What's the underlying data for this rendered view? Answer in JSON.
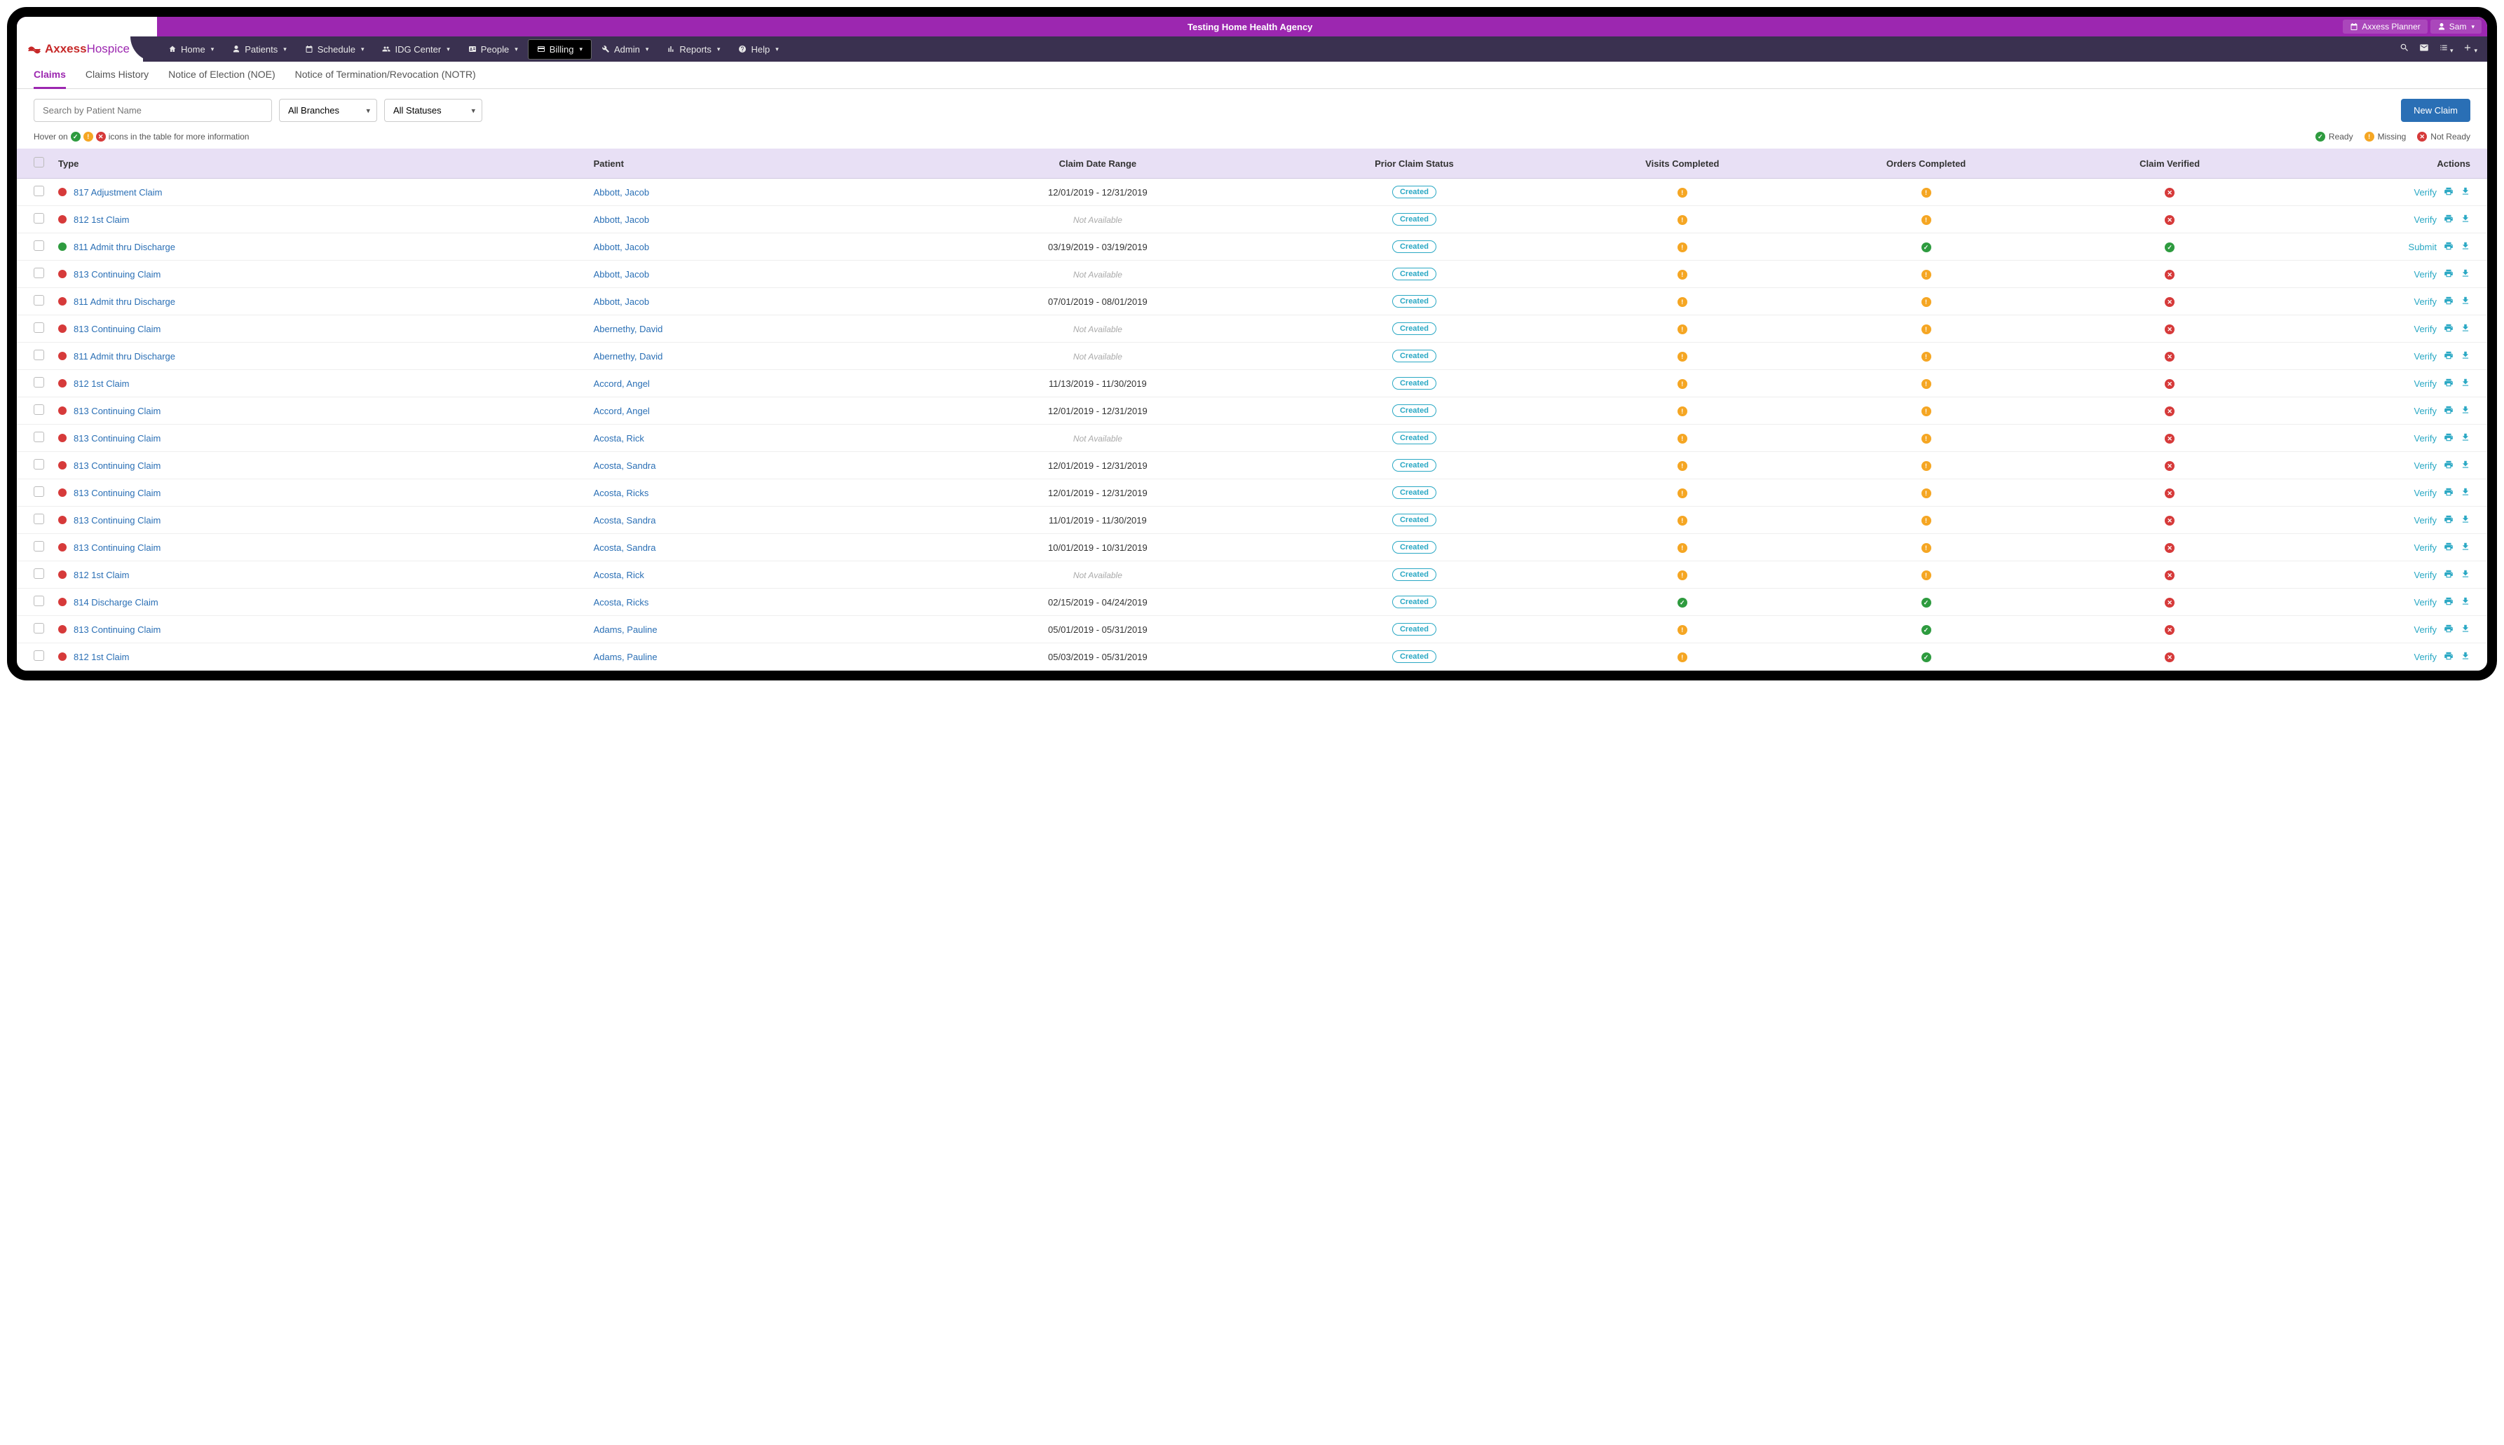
{
  "topbar": {
    "title": "Testing Home Health Agency",
    "planner": "Axxess Planner",
    "user": "Sam"
  },
  "logo": {
    "part1": "Axxess",
    "part2": "Hospice"
  },
  "nav": {
    "items": [
      {
        "label": "Home",
        "icon": "home"
      },
      {
        "label": "Patients",
        "icon": "user"
      },
      {
        "label": "Schedule",
        "icon": "calendar"
      },
      {
        "label": "IDG Center",
        "icon": "group"
      },
      {
        "label": "People",
        "icon": "id"
      },
      {
        "label": "Billing",
        "icon": "card",
        "active": true
      },
      {
        "label": "Admin",
        "icon": "wrench"
      },
      {
        "label": "Reports",
        "icon": "bars"
      },
      {
        "label": "Help",
        "icon": "help"
      }
    ]
  },
  "subtabs": [
    {
      "label": "Claims",
      "active": true
    },
    {
      "label": "Claims History"
    },
    {
      "label": "Notice of Election (NOE)"
    },
    {
      "label": "Notice of Termination/Revocation (NOTR)"
    }
  ],
  "filters": {
    "search_placeholder": "Search by Patient Name",
    "branch": "All Branches",
    "status": "All Statuses",
    "new_claim": "New Claim"
  },
  "legend": {
    "hover_text_pre": "Hover on",
    "hover_text_post": "icons in the table for more information",
    "ready": "Ready",
    "missing": "Missing",
    "notready": "Not Ready"
  },
  "columns": {
    "type": "Type",
    "patient": "Patient",
    "date": "Claim Date Range",
    "prior": "Prior Claim Status",
    "visits": "Visits Completed",
    "orders": "Orders Completed",
    "verified": "Claim Verified",
    "actions": "Actions"
  },
  "prior_label": "Created",
  "na_label": "Not Available",
  "action_verify": "Verify",
  "action_submit": "Submit",
  "rows": [
    {
      "dot": "red",
      "type": "817 Adjustment Claim",
      "patient": "Abbott, Jacob",
      "date": "12/01/2019 - 12/31/2019",
      "visits": "missing",
      "orders": "missing",
      "verified": "notready",
      "action": "Verify"
    },
    {
      "dot": "red",
      "type": "812 1st Claim",
      "patient": "Abbott, Jacob",
      "date": "na",
      "visits": "missing",
      "orders": "missing",
      "verified": "notready",
      "action": "Verify"
    },
    {
      "dot": "green",
      "type": "811 Admit thru Discharge",
      "patient": "Abbott, Jacob",
      "date": "03/19/2019 - 03/19/2019",
      "visits": "missing",
      "orders": "ready",
      "verified": "ready",
      "action": "Submit"
    },
    {
      "dot": "red",
      "type": "813 Continuing Claim",
      "patient": "Abbott, Jacob",
      "date": "na",
      "visits": "missing",
      "orders": "missing",
      "verified": "notready",
      "action": "Verify"
    },
    {
      "dot": "red",
      "type": "811 Admit thru Discharge",
      "patient": "Abbott, Jacob",
      "date": "07/01/2019 - 08/01/2019",
      "visits": "missing",
      "orders": "missing",
      "verified": "notready",
      "action": "Verify"
    },
    {
      "dot": "red",
      "type": "813 Continuing Claim",
      "patient": "Abernethy, David",
      "date": "na",
      "visits": "missing",
      "orders": "missing",
      "verified": "notready",
      "action": "Verify"
    },
    {
      "dot": "red",
      "type": "811 Admit thru Discharge",
      "patient": "Abernethy, David",
      "date": "na",
      "visits": "missing",
      "orders": "missing",
      "verified": "notready",
      "action": "Verify"
    },
    {
      "dot": "red",
      "type": "812 1st Claim",
      "patient": "Accord, Angel",
      "date": "11/13/2019 - 11/30/2019",
      "visits": "missing",
      "orders": "missing",
      "verified": "notready",
      "action": "Verify"
    },
    {
      "dot": "red",
      "type": "813 Continuing Claim",
      "patient": "Accord, Angel",
      "date": "12/01/2019 - 12/31/2019",
      "visits": "missing",
      "orders": "missing",
      "verified": "notready",
      "action": "Verify"
    },
    {
      "dot": "red",
      "type": "813 Continuing Claim",
      "patient": "Acosta, Rick",
      "date": "na",
      "visits": "missing",
      "orders": "missing",
      "verified": "notready",
      "action": "Verify"
    },
    {
      "dot": "red",
      "type": "813 Continuing Claim",
      "patient": "Acosta, Sandra",
      "date": "12/01/2019 - 12/31/2019",
      "visits": "missing",
      "orders": "missing",
      "verified": "notready",
      "action": "Verify"
    },
    {
      "dot": "red",
      "type": "813 Continuing Claim",
      "patient": "Acosta, Ricks",
      "date": "12/01/2019 - 12/31/2019",
      "visits": "missing",
      "orders": "missing",
      "verified": "notready",
      "action": "Verify"
    },
    {
      "dot": "red",
      "type": "813 Continuing Claim",
      "patient": "Acosta, Sandra",
      "date": "11/01/2019 - 11/30/2019",
      "visits": "missing",
      "orders": "missing",
      "verified": "notready",
      "action": "Verify"
    },
    {
      "dot": "red",
      "type": "813 Continuing Claim",
      "patient": "Acosta, Sandra",
      "date": "10/01/2019 - 10/31/2019",
      "visits": "missing",
      "orders": "missing",
      "verified": "notready",
      "action": "Verify"
    },
    {
      "dot": "red",
      "type": "812 1st Claim",
      "patient": "Acosta, Rick",
      "date": "na",
      "visits": "missing",
      "orders": "missing",
      "verified": "notready",
      "action": "Verify"
    },
    {
      "dot": "red",
      "type": "814 Discharge Claim",
      "patient": "Acosta, Ricks",
      "date": "02/15/2019 - 04/24/2019",
      "visits": "ready",
      "orders": "ready",
      "verified": "notready",
      "action": "Verify"
    },
    {
      "dot": "red",
      "type": "813 Continuing Claim",
      "patient": "Adams, Pauline",
      "date": "05/01/2019 - 05/31/2019",
      "visits": "missing",
      "orders": "ready",
      "verified": "notready",
      "action": "Verify"
    },
    {
      "dot": "red",
      "type": "812 1st Claim",
      "patient": "Adams, Pauline",
      "date": "05/03/2019 - 05/31/2019",
      "visits": "missing",
      "orders": "ready",
      "verified": "notready",
      "action": "Verify"
    }
  ]
}
